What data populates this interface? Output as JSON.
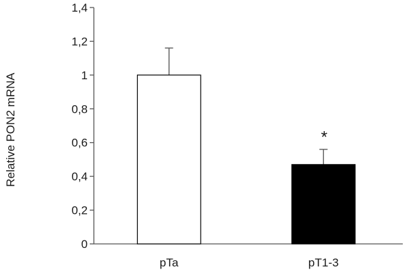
{
  "chart_data": {
    "type": "bar",
    "title": "",
    "xlabel": "",
    "ylabel": "Relative PON2 mRNA",
    "ylim": [
      0,
      1.4
    ],
    "yticks": [
      "0",
      "0,2",
      "0,4",
      "0,6",
      "0,8",
      "1",
      "1,2",
      "1,4"
    ],
    "ytick_values": [
      0,
      0.2,
      0.4,
      0.6,
      0.8,
      1.0,
      1.2,
      1.4
    ],
    "categories": [
      "pTa",
      "pT1-3"
    ],
    "values": [
      1.0,
      0.47
    ],
    "error_upper": [
      0.16,
      0.09
    ],
    "bar_colors": [
      "#ffffff",
      "#000000"
    ],
    "annotations": [
      {
        "category": "pT1-3",
        "text": "*"
      }
    ],
    "grid": false,
    "legend": "none"
  }
}
